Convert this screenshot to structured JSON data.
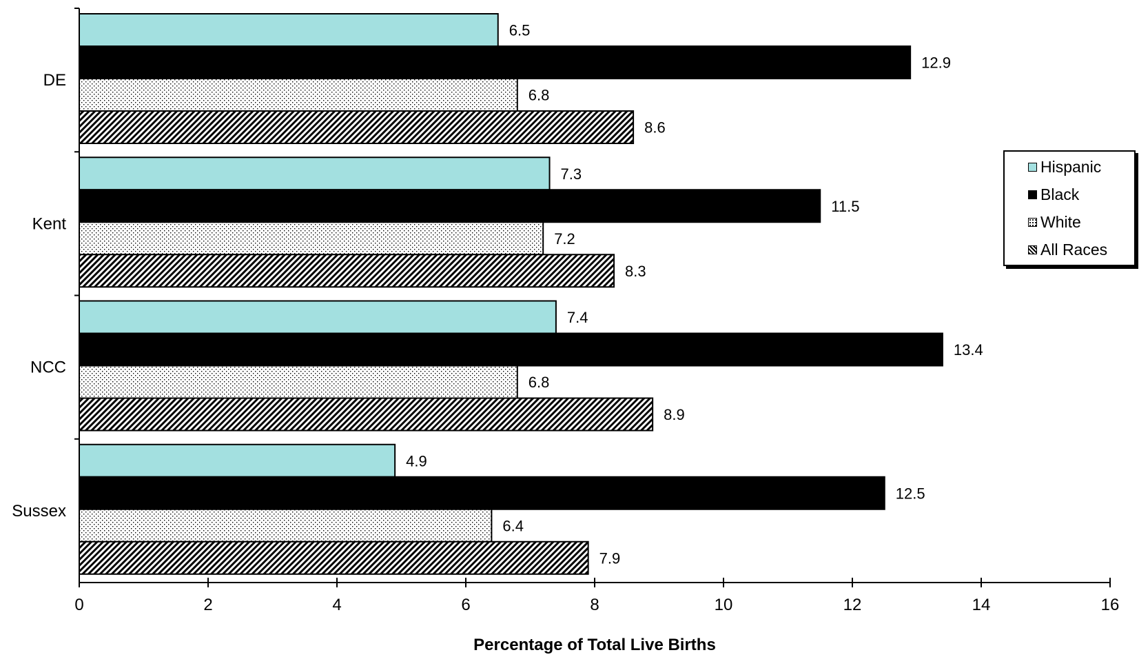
{
  "chart_data": {
    "type": "bar",
    "orientation": "horizontal",
    "categories": [
      "DE",
      "Kent",
      "NCC",
      "Sussex"
    ],
    "series": [
      {
        "name": "Hispanic",
        "values": [
          6.5,
          7.3,
          7.4,
          4.9
        ],
        "color": "#a3e0e0",
        "pattern": "solid"
      },
      {
        "name": "Black",
        "values": [
          12.9,
          11.5,
          13.4,
          12.5
        ],
        "color": "#000000",
        "pattern": "solid"
      },
      {
        "name": "White",
        "values": [
          6.8,
          7.2,
          6.8,
          6.4
        ],
        "color": "#ffffff",
        "pattern": "dots"
      },
      {
        "name": "All Races",
        "values": [
          8.6,
          8.3,
          8.9,
          7.9
        ],
        "color": "#ffffff",
        "pattern": "diagonal-hatch"
      }
    ],
    "data_labels": [
      [
        "6.5",
        "12.9",
        "6.8",
        "8.6"
      ],
      [
        "7.3",
        "11.5",
        "7.2",
        "8.3"
      ],
      [
        "7.4",
        "13.4",
        "6.8",
        "8.9"
      ],
      [
        "4.9",
        "12.5",
        "6.4",
        "7.9"
      ]
    ],
    "xlim": [
      0,
      16
    ],
    "xticks": [
      "0",
      "2",
      "4",
      "6",
      "8",
      "10",
      "12",
      "14",
      "16"
    ],
    "xlabel": "Percentage of Total Live Births",
    "ylabel": "",
    "title": "",
    "grid": false,
    "legend_position": "right"
  }
}
